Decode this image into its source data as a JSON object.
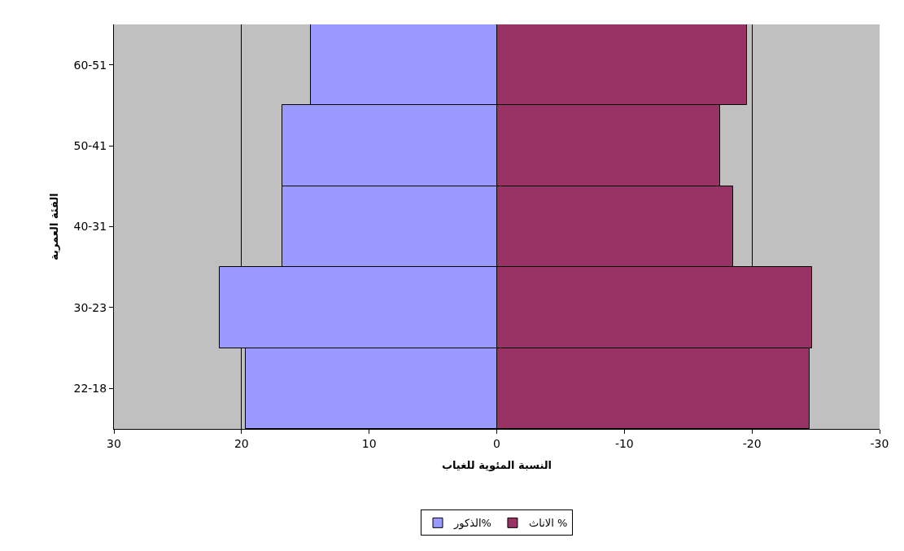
{
  "chart_data": {
    "type": "bar",
    "orientation": "horizontal",
    "stacked": true,
    "xlabel": "النسبة المئوية للغياب",
    "ylabel": "الفئة العمرية",
    "categories": [
      "60-51",
      "50-41",
      "40-31",
      "30-23",
      "22-18"
    ],
    "series": [
      {
        "name": "الذكور%",
        "color": "#9999ff",
        "values": [
          14.6,
          16.8,
          16.8,
          21.7,
          19.7
        ]
      },
      {
        "name": "الاناث %",
        "color": "#993366",
        "values": [
          -19.6,
          -17.5,
          -18.5,
          -24.7,
          -24.5
        ]
      }
    ],
    "xlim": [
      30,
      -30
    ],
    "xticks": [
      30,
      20,
      10,
      0,
      -10,
      -20,
      -30
    ],
    "grid": "x",
    "legend": "bottom"
  }
}
